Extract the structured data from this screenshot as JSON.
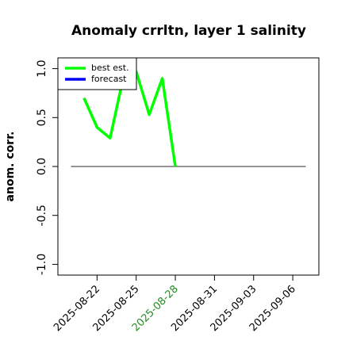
{
  "chart_data": {
    "type": "line",
    "title": "Anomaly crrltn, layer 1 salinity",
    "ylabel": "anom. corr.",
    "x": [
      "2025-08-21",
      "2025-08-22",
      "2025-08-23",
      "2025-08-24",
      "2025-08-25",
      "2025-08-26",
      "2025-08-27",
      "2025-08-28"
    ],
    "series": [
      {
        "name": "best est.",
        "color": "#00ff00",
        "values": [
          0.7,
          0.4,
          0.29,
          0.9,
          0.97,
          0.53,
          0.9,
          0.0
        ]
      },
      {
        "name": "forecast",
        "color": "#0000ff",
        "values": [
          null,
          null,
          null,
          null,
          null,
          null,
          null,
          null
        ]
      }
    ],
    "hline": {
      "y": 0,
      "x": [
        "2025-08-20",
        "2025-09-07"
      ],
      "color": "#555555"
    },
    "xlim": [
      "2025-08-19",
      "2025-09-08"
    ],
    "xticks": [
      "2025-08-22",
      "2025-08-25",
      "2025-08-28",
      "2025-08-31",
      "2025-09-03",
      "2025-09-06"
    ],
    "xtick_colors": [
      "#000000",
      "#000000",
      "#228b22",
      "#000000",
      "#000000",
      "#000000"
    ],
    "ylim": [
      -1.11,
      1.11
    ],
    "yticks": [
      {
        "value": -1,
        "label": "-1.0"
      },
      {
        "value": -0.5,
        "label": "-0.5"
      },
      {
        "value": 0,
        "label": "0.0"
      },
      {
        "value": 0.5,
        "label": "0.5"
      },
      {
        "value": 1,
        "label": "1.0"
      }
    ],
    "legend": "top-left"
  }
}
